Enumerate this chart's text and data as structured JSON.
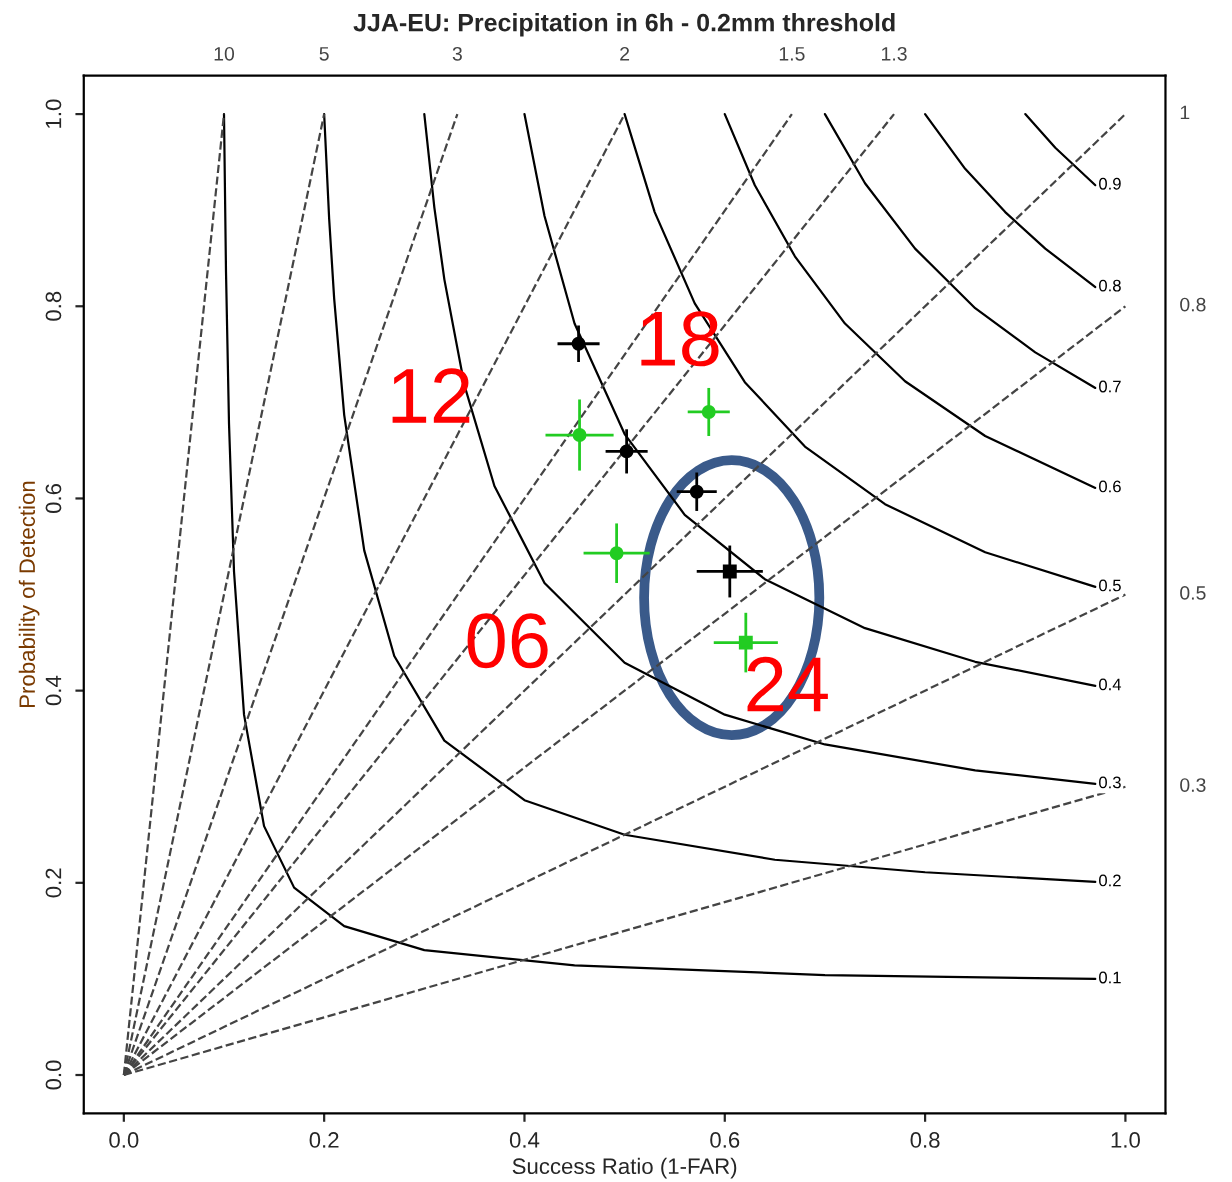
{
  "chart_data": {
    "type": "scatter",
    "title": "JJA-EU: Precipitation in 6h - 0.2mm threshold",
    "xlabel": "Success Ratio (1-FAR)",
    "ylabel": "Probability of Detection",
    "xlim": [
      -0.04,
      1.04
    ],
    "ylim": [
      -0.04,
      1.04
    ],
    "xticks": [
      {
        "value": 0,
        "label": "0.0"
      },
      {
        "value": 0.2,
        "label": "0.2"
      },
      {
        "value": 0.4,
        "label": "0.4"
      },
      {
        "value": 0.6,
        "label": "0.6"
      },
      {
        "value": 0.8,
        "label": "0.8"
      },
      {
        "value": 1,
        "label": "1.0"
      }
    ],
    "yticks": [
      {
        "value": 0,
        "label": "0.0"
      },
      {
        "value": 0.2,
        "label": "0.2"
      },
      {
        "value": 0.4,
        "label": "0.4"
      },
      {
        "value": 0.6,
        "label": "0.6"
      },
      {
        "value": 0.8,
        "label": "0.8"
      },
      {
        "value": 1,
        "label": "1.0"
      }
    ],
    "series": [
      {
        "type": "line",
        "name": "0.1",
        "color": "#000000",
        "x": [
          0.1,
          0.102,
          0.105,
          0.11,
          0.12,
          0.14,
          0.17,
          0.22,
          0.3,
          0.45,
          0.7,
          0.97
        ],
        "values": [
          1,
          0.836,
          0.678,
          0.524,
          0.375,
          0.259,
          0.195,
          0.155,
          0.13,
          0.114,
          0.104,
          0.1
        ]
      },
      {
        "type": "line",
        "name": "0.2",
        "color": "#000000",
        "x": [
          0.2,
          0.205,
          0.21,
          0.22,
          0.24,
          0.27,
          0.32,
          0.4,
          0.5,
          0.65,
          0.8,
          0.97
        ],
        "values": [
          1,
          0.891,
          0.808,
          0.687,
          0.546,
          0.436,
          0.348,
          0.286,
          0.25,
          0.224,
          0.211,
          0.201
        ]
      },
      {
        "type": "line",
        "name": "0.3",
        "color": "#000000",
        "x": [
          0.3,
          0.31,
          0.32,
          0.34,
          0.37,
          0.42,
          0.5,
          0.6,
          0.7,
          0.85,
          0.97
        ],
        "values": [
          1,
          0.903,
          0.828,
          0.718,
          0.613,
          0.512,
          0.429,
          0.375,
          0.344,
          0.317,
          0.303
        ]
      },
      {
        "type": "line",
        "name": "0.4",
        "color": "#000000",
        "x": [
          0.4,
          0.42,
          0.45,
          0.5,
          0.56,
          0.64,
          0.74,
          0.85,
          0.97
        ],
        "values": [
          1,
          0.894,
          0.782,
          0.667,
          0.583,
          0.516,
          0.465,
          0.43,
          0.405
        ]
      },
      {
        "type": "line",
        "name": "0.5",
        "color": "#000000",
        "x": [
          0.5,
          0.53,
          0.57,
          0.62,
          0.68,
          0.76,
          0.86,
          0.97
        ],
        "values": [
          1,
          0.898,
          0.803,
          0.721,
          0.654,
          0.594,
          0.544,
          0.508
        ]
      },
      {
        "type": "line",
        "name": "0.6",
        "color": "#000000",
        "x": [
          0.6,
          0.63,
          0.67,
          0.72,
          0.78,
          0.86,
          0.97
        ],
        "values": [
          1,
          0.926,
          0.852,
          0.782,
          0.722,
          0.665,
          0.611
        ]
      },
      {
        "type": "line",
        "name": "0.7",
        "color": "#000000",
        "x": [
          0.7,
          0.74,
          0.79,
          0.85,
          0.91,
          0.97
        ],
        "values": [
          1,
          0.928,
          0.86,
          0.798,
          0.752,
          0.715
        ]
      },
      {
        "type": "line",
        "name": "0.8",
        "color": "#000000",
        "x": [
          0.8,
          0.84,
          0.88,
          0.92,
          0.97
        ],
        "values": [
          1,
          0.943,
          0.898,
          0.86,
          0.82
        ]
      },
      {
        "type": "line",
        "name": "0.9",
        "color": "#000000",
        "x": [
          0.9,
          0.93,
          0.97
        ],
        "values": [
          1,
          0.965,
          0.926
        ]
      },
      {
        "type": "line",
        "name": "10",
        "line_style": "dashed",
        "color": "#444444",
        "x": [
          0,
          0.1
        ],
        "values": [
          0,
          1
        ]
      },
      {
        "type": "line",
        "name": "5",
        "line_style": "dashed",
        "color": "#444444",
        "x": [
          0,
          0.2
        ],
        "values": [
          0,
          1
        ]
      },
      {
        "type": "line",
        "name": "3",
        "line_style": "dashed",
        "color": "#444444",
        "x": [
          0,
          0.333
        ],
        "values": [
          0,
          1
        ]
      },
      {
        "type": "line",
        "name": "2",
        "line_style": "dashed",
        "color": "#444444",
        "x": [
          0,
          0.5
        ],
        "values": [
          0,
          1
        ]
      },
      {
        "type": "line",
        "name": "1.5",
        "line_style": "dashed",
        "color": "#444444",
        "x": [
          0,
          0.667
        ],
        "values": [
          0,
          1
        ]
      },
      {
        "type": "line",
        "name": "1.3",
        "line_style": "dashed",
        "color": "#444444",
        "x": [
          0,
          0.769
        ],
        "values": [
          0,
          1
        ]
      },
      {
        "type": "line",
        "name": "1",
        "line_style": "dashed",
        "color": "#444444",
        "x": [
          0,
          1
        ],
        "values": [
          0,
          1
        ]
      },
      {
        "type": "line",
        "name": "0.8",
        "line_style": "dashed",
        "color": "#444444",
        "x": [
          0,
          1
        ],
        "values": [
          0,
          0.8
        ]
      },
      {
        "type": "line",
        "name": "0.5",
        "line_style": "dashed",
        "color": "#444444",
        "x": [
          0,
          1
        ],
        "values": [
          0,
          0.5
        ]
      },
      {
        "type": "line",
        "name": "0.3",
        "line_style": "dashed",
        "color": "#444444",
        "x": [
          0,
          1
        ],
        "values": [
          0,
          0.3
        ]
      },
      {
        "marker": "circle",
        "color": "#000000",
        "x": [
          0.454,
          0.502
        ],
        "values": [
          0.761,
          0.649
        ],
        "errors": [
          0.019,
          0.023
        ],
        "xerrors": [
          0.021,
          0.021
        ]
      },
      {
        "marker": "circle",
        "color": "#000000",
        "x": [
          0.572
        ],
        "values": [
          0.607
        ],
        "errors": [
          0.02
        ],
        "xerrors": [
          0.02
        ]
      },
      {
        "marker": "square",
        "color": "#000000",
        "x": [
          0.605
        ],
        "values": [
          0.524
        ],
        "errors": [
          0.027
        ],
        "xerrors": [
          0.033
        ]
      },
      {
        "marker": "circle",
        "color": "#22cc22",
        "x": [
          0.455,
          0.584,
          0.492
        ],
        "values": [
          0.666,
          0.69,
          0.543
        ],
        "errors": [
          0.037,
          0.025,
          0.031
        ],
        "xerrors": [
          0.034,
          0.021,
          0.033
        ]
      },
      {
        "marker": "square",
        "color": "#22cc22",
        "x": [
          0.621
        ],
        "values": [
          0.45
        ],
        "errors": [
          0.031
        ],
        "xerrors": [
          0.032
        ]
      }
    ],
    "annotations": [
      "12",
      "18",
      "06",
      "24"
    ]
  }
}
